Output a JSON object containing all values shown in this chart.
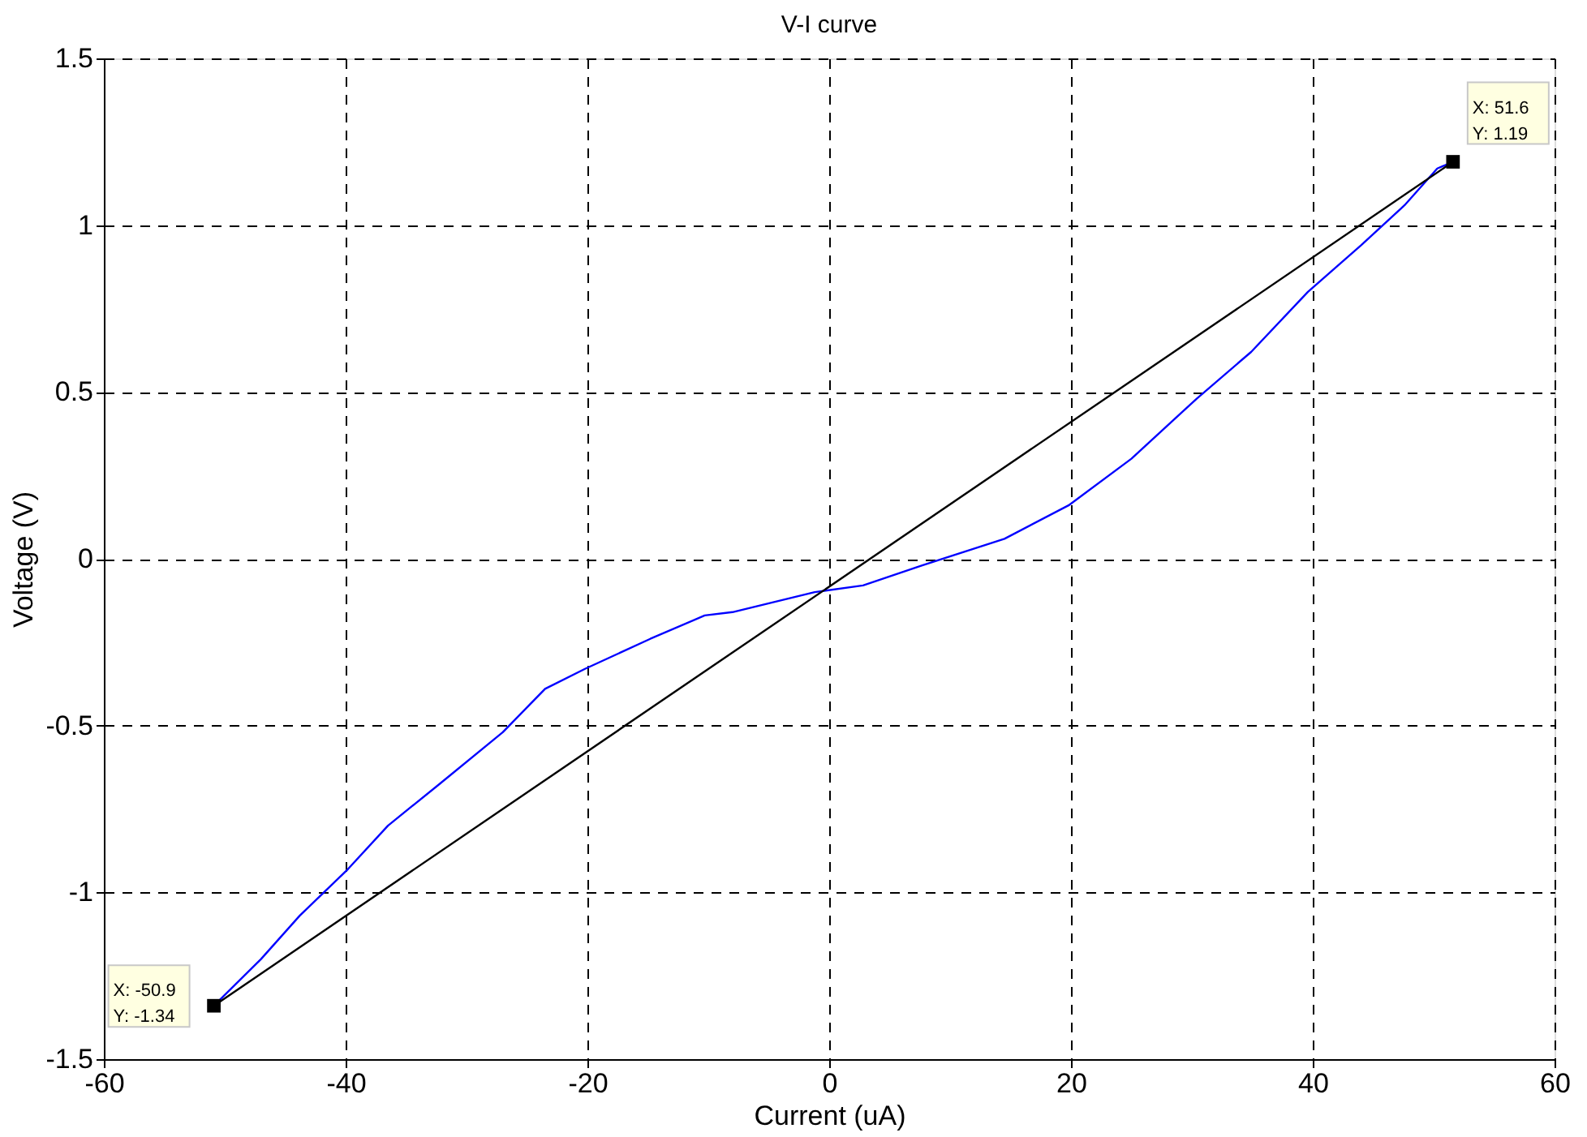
{
  "chart_data": {
    "type": "line",
    "title": "V-I curve",
    "xlabel": "Current (uA)",
    "ylabel": "Voltage (V)",
    "xlim": [
      -60,
      60
    ],
    "xticks": [
      -60,
      -40,
      -20,
      0,
      20,
      40,
      60
    ],
    "ylim": [
      -1.5,
      1.5
    ],
    "yticks": [
      -1.5,
      -1,
      -0.5,
      0,
      0.5,
      1,
      1.5
    ],
    "grid": true,
    "line_style": "solid",
    "marker": "none",
    "series": [
      {
        "type": "line",
        "color": "#0000ff",
        "x": [
          -50.9,
          -47,
          -43.8,
          -39.8,
          -36.5,
          -32.4,
          -27.0,
          -23.5,
          -20.2,
          -14.8,
          -10.3,
          -8.0,
          -1.2,
          2.8,
          7.7,
          14.5,
          19.8,
          25.0,
          30.4,
          34.9,
          39.6,
          44.0,
          47.6,
          50.3,
          51.6
        ],
        "values": [
          -1.34,
          -1.2,
          -1.07,
          -0.93,
          -0.8,
          -0.68,
          -0.52,
          -0.39,
          -0.33,
          -0.24,
          -0.17,
          -0.16,
          -0.1,
          -0.08,
          -0.02,
          0.06,
          0.16,
          0.3,
          0.48,
          0.62,
          0.8,
          0.94,
          1.06,
          1.17,
          1.19
        ]
      },
      {
        "type": "line",
        "color": "#000000",
        "x": [
          -50.9,
          51.6
        ],
        "values": [
          -1.34,
          1.19
        ]
      },
      {
        "type": "scatter",
        "color": "#000000",
        "marker": "square",
        "x": [
          -50.9,
          51.6
        ],
        "values": [
          -1.34,
          1.19
        ]
      }
    ],
    "annotations": [
      {
        "text": "X: -50.9\nY: -1.34",
        "x": -50.9,
        "y": -1.34
      },
      {
        "text": "X: 51.6\nY: 1.19",
        "x": 51.6,
        "y": 1.19
      }
    ]
  }
}
